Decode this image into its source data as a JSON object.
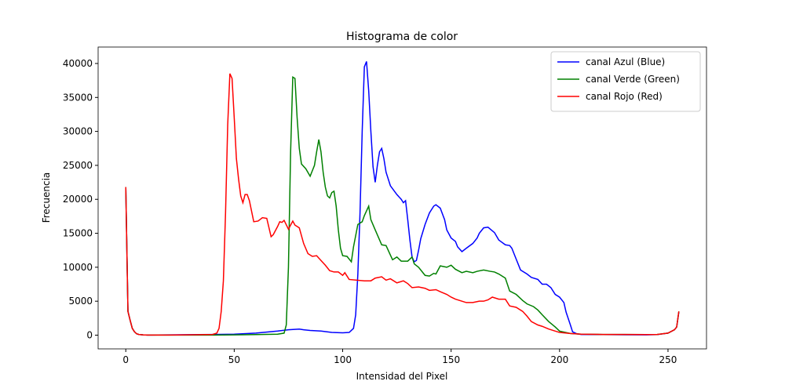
{
  "chart_data": {
    "type": "line",
    "title": "Histograma de color",
    "xlabel": "Intensidad del Pixel",
    "ylabel": "Frecuencia",
    "xlim": [
      -12.75,
      267.75
    ],
    "ylim": [
      -2020,
      42420
    ],
    "xticks": [
      0,
      50,
      100,
      150,
      200,
      250
    ],
    "yticks": [
      0,
      5000,
      10000,
      15000,
      20000,
      25000,
      30000,
      35000,
      40000
    ],
    "legend": "upper right",
    "series": [
      {
        "name": "canal Azul (Blue)",
        "color": "#0000ff",
        "x": [
          0,
          1,
          2,
          3,
          4,
          5,
          6,
          8,
          10,
          20,
          40,
          50,
          60,
          70,
          75,
          80,
          82,
          85,
          90,
          95,
          100,
          103,
          105,
          106,
          107,
          108,
          109,
          110,
          111,
          112,
          113,
          114,
          115,
          116,
          117,
          118,
          119,
          120,
          122,
          125,
          127,
          128,
          129,
          130,
          131,
          132,
          133,
          134,
          135,
          136,
          138,
          140,
          142,
          143,
          145,
          147,
          148,
          150,
          152,
          153,
          155,
          157,
          160,
          162,
          163,
          165,
          167,
          170,
          172,
          175,
          177,
          178,
          180,
          182,
          185,
          187,
          190,
          192,
          194,
          196,
          198,
          200,
          202,
          203,
          205,
          206,
          208,
          210,
          220,
          230,
          240,
          245,
          250,
          253,
          254,
          255
        ],
        "values": [
          21800,
          3500,
          2200,
          1000,
          500,
          200,
          100,
          50,
          20,
          50,
          100,
          150,
          300,
          600,
          800,
          900,
          800,
          700,
          600,
          400,
          350,
          400,
          1000,
          3000,
          9000,
          18000,
          30000,
          39500,
          40300,
          36000,
          30000,
          24800,
          22500,
          25000,
          27000,
          27500,
          26000,
          24000,
          22000,
          20700,
          20000,
          19500,
          19800,
          17000,
          14000,
          11500,
          10800,
          11000,
          12500,
          14200,
          16300,
          18000,
          19000,
          19200,
          18700,
          17000,
          15500,
          14300,
          13800,
          13000,
          12300,
          12800,
          13500,
          14300,
          15000,
          15800,
          15900,
          15100,
          14000,
          13300,
          13200,
          12800,
          11200,
          9600,
          9000,
          8500,
          8200,
          7500,
          7500,
          7000,
          6000,
          5600,
          4800,
          3400,
          1500,
          500,
          200,
          100,
          80,
          60,
          50,
          80,
          300,
          800,
          1200,
          3400
        ]
      },
      {
        "name": "canal Verde (Green)",
        "color": "#008000",
        "x": [
          0,
          1,
          2,
          3,
          4,
          5,
          6,
          8,
          10,
          20,
          40,
          50,
          60,
          70,
          73,
          74,
          75,
          76,
          77,
          78,
          79,
          80,
          81,
          83,
          85,
          87,
          88,
          89,
          90,
          91,
          92,
          93,
          94,
          95,
          96,
          97,
          98,
          99,
          100,
          102,
          104,
          105,
          107,
          109,
          110,
          112,
          113,
          115,
          118,
          120,
          122,
          123,
          125,
          127,
          130,
          132,
          133,
          135,
          138,
          140,
          142,
          143,
          145,
          148,
          150,
          152,
          155,
          157,
          160,
          162,
          165,
          168,
          170,
          172,
          175,
          177,
          180,
          183,
          185,
          188,
          190,
          192,
          195,
          198,
          200,
          205,
          210,
          220,
          230,
          240,
          245,
          250,
          253,
          254,
          255
        ],
        "values": [
          21800,
          3500,
          2200,
          1000,
          500,
          200,
          100,
          50,
          20,
          20,
          20,
          50,
          80,
          150,
          300,
          1500,
          10000,
          27000,
          38000,
          37800,
          32000,
          27500,
          25200,
          24500,
          23400,
          25000,
          27000,
          28800,
          27000,
          24000,
          21800,
          20500,
          20200,
          21000,
          21200,
          19000,
          15500,
          12800,
          11700,
          11600,
          10800,
          13000,
          16300,
          16700,
          17600,
          19000,
          17000,
          15500,
          13300,
          13200,
          11800,
          11100,
          11500,
          10900,
          10900,
          11500,
          10500,
          10000,
          8800,
          8700,
          9100,
          9000,
          10200,
          10000,
          10300,
          9700,
          9200,
          9400,
          9200,
          9400,
          9600,
          9400,
          9300,
          9000,
          8400,
          6500,
          6000,
          5100,
          4600,
          4200,
          3700,
          3000,
          2000,
          1200,
          600,
          250,
          150,
          100,
          100,
          80,
          100,
          300,
          800,
          1200,
          3500
        ]
      },
      {
        "name": "canal Rojo (Red)",
        "color": "#ff0000",
        "x": [
          0,
          1,
          2,
          3,
          4,
          5,
          6,
          8,
          10,
          20,
          40,
          42,
          43,
          44,
          45,
          46,
          47,
          48,
          49,
          50,
          51,
          52,
          53,
          54,
          55,
          56,
          57,
          59,
          61,
          63,
          65,
          67,
          68,
          70,
          71,
          72,
          73,
          75,
          77,
          78,
          80,
          82,
          84,
          86,
          88,
          90,
          92,
          94,
          96,
          98,
          100,
          101,
          103,
          110,
          113,
          115,
          118,
          120,
          122,
          125,
          128,
          130,
          132,
          135,
          138,
          140,
          143,
          145,
          148,
          150,
          152,
          155,
          157,
          160,
          163,
          165,
          167,
          169,
          172,
          175,
          177,
          180,
          183,
          185,
          187,
          190,
          192,
          195,
          198,
          200,
          205,
          210,
          220,
          230,
          240,
          245,
          250,
          253,
          254,
          255
        ],
        "values": [
          21800,
          3500,
          2200,
          1000,
          500,
          200,
          100,
          50,
          20,
          20,
          100,
          300,
          1000,
          3500,
          8000,
          18000,
          31000,
          38500,
          37800,
          32000,
          26000,
          23000,
          20500,
          19500,
          20700,
          20700,
          19800,
          16700,
          16800,
          17300,
          17200,
          14500,
          14800,
          16000,
          16700,
          16600,
          16900,
          15600,
          16800,
          16200,
          15800,
          13500,
          12000,
          11600,
          11700,
          11000,
          10300,
          9500,
          9300,
          9300,
          8800,
          9200,
          8200,
          8000,
          8000,
          8400,
          8600,
          8100,
          8300,
          7700,
          8000,
          7600,
          7000,
          7100,
          6900,
          6600,
          6700,
          6400,
          6000,
          5600,
          5300,
          5000,
          4800,
          4800,
          5000,
          5000,
          5200,
          5600,
          5300,
          5300,
          4300,
          4100,
          3500,
          2800,
          2000,
          1500,
          1300,
          900,
          600,
          400,
          250,
          150,
          100,
          100,
          80,
          100,
          300,
          800,
          1200,
          3500
        ]
      }
    ]
  }
}
